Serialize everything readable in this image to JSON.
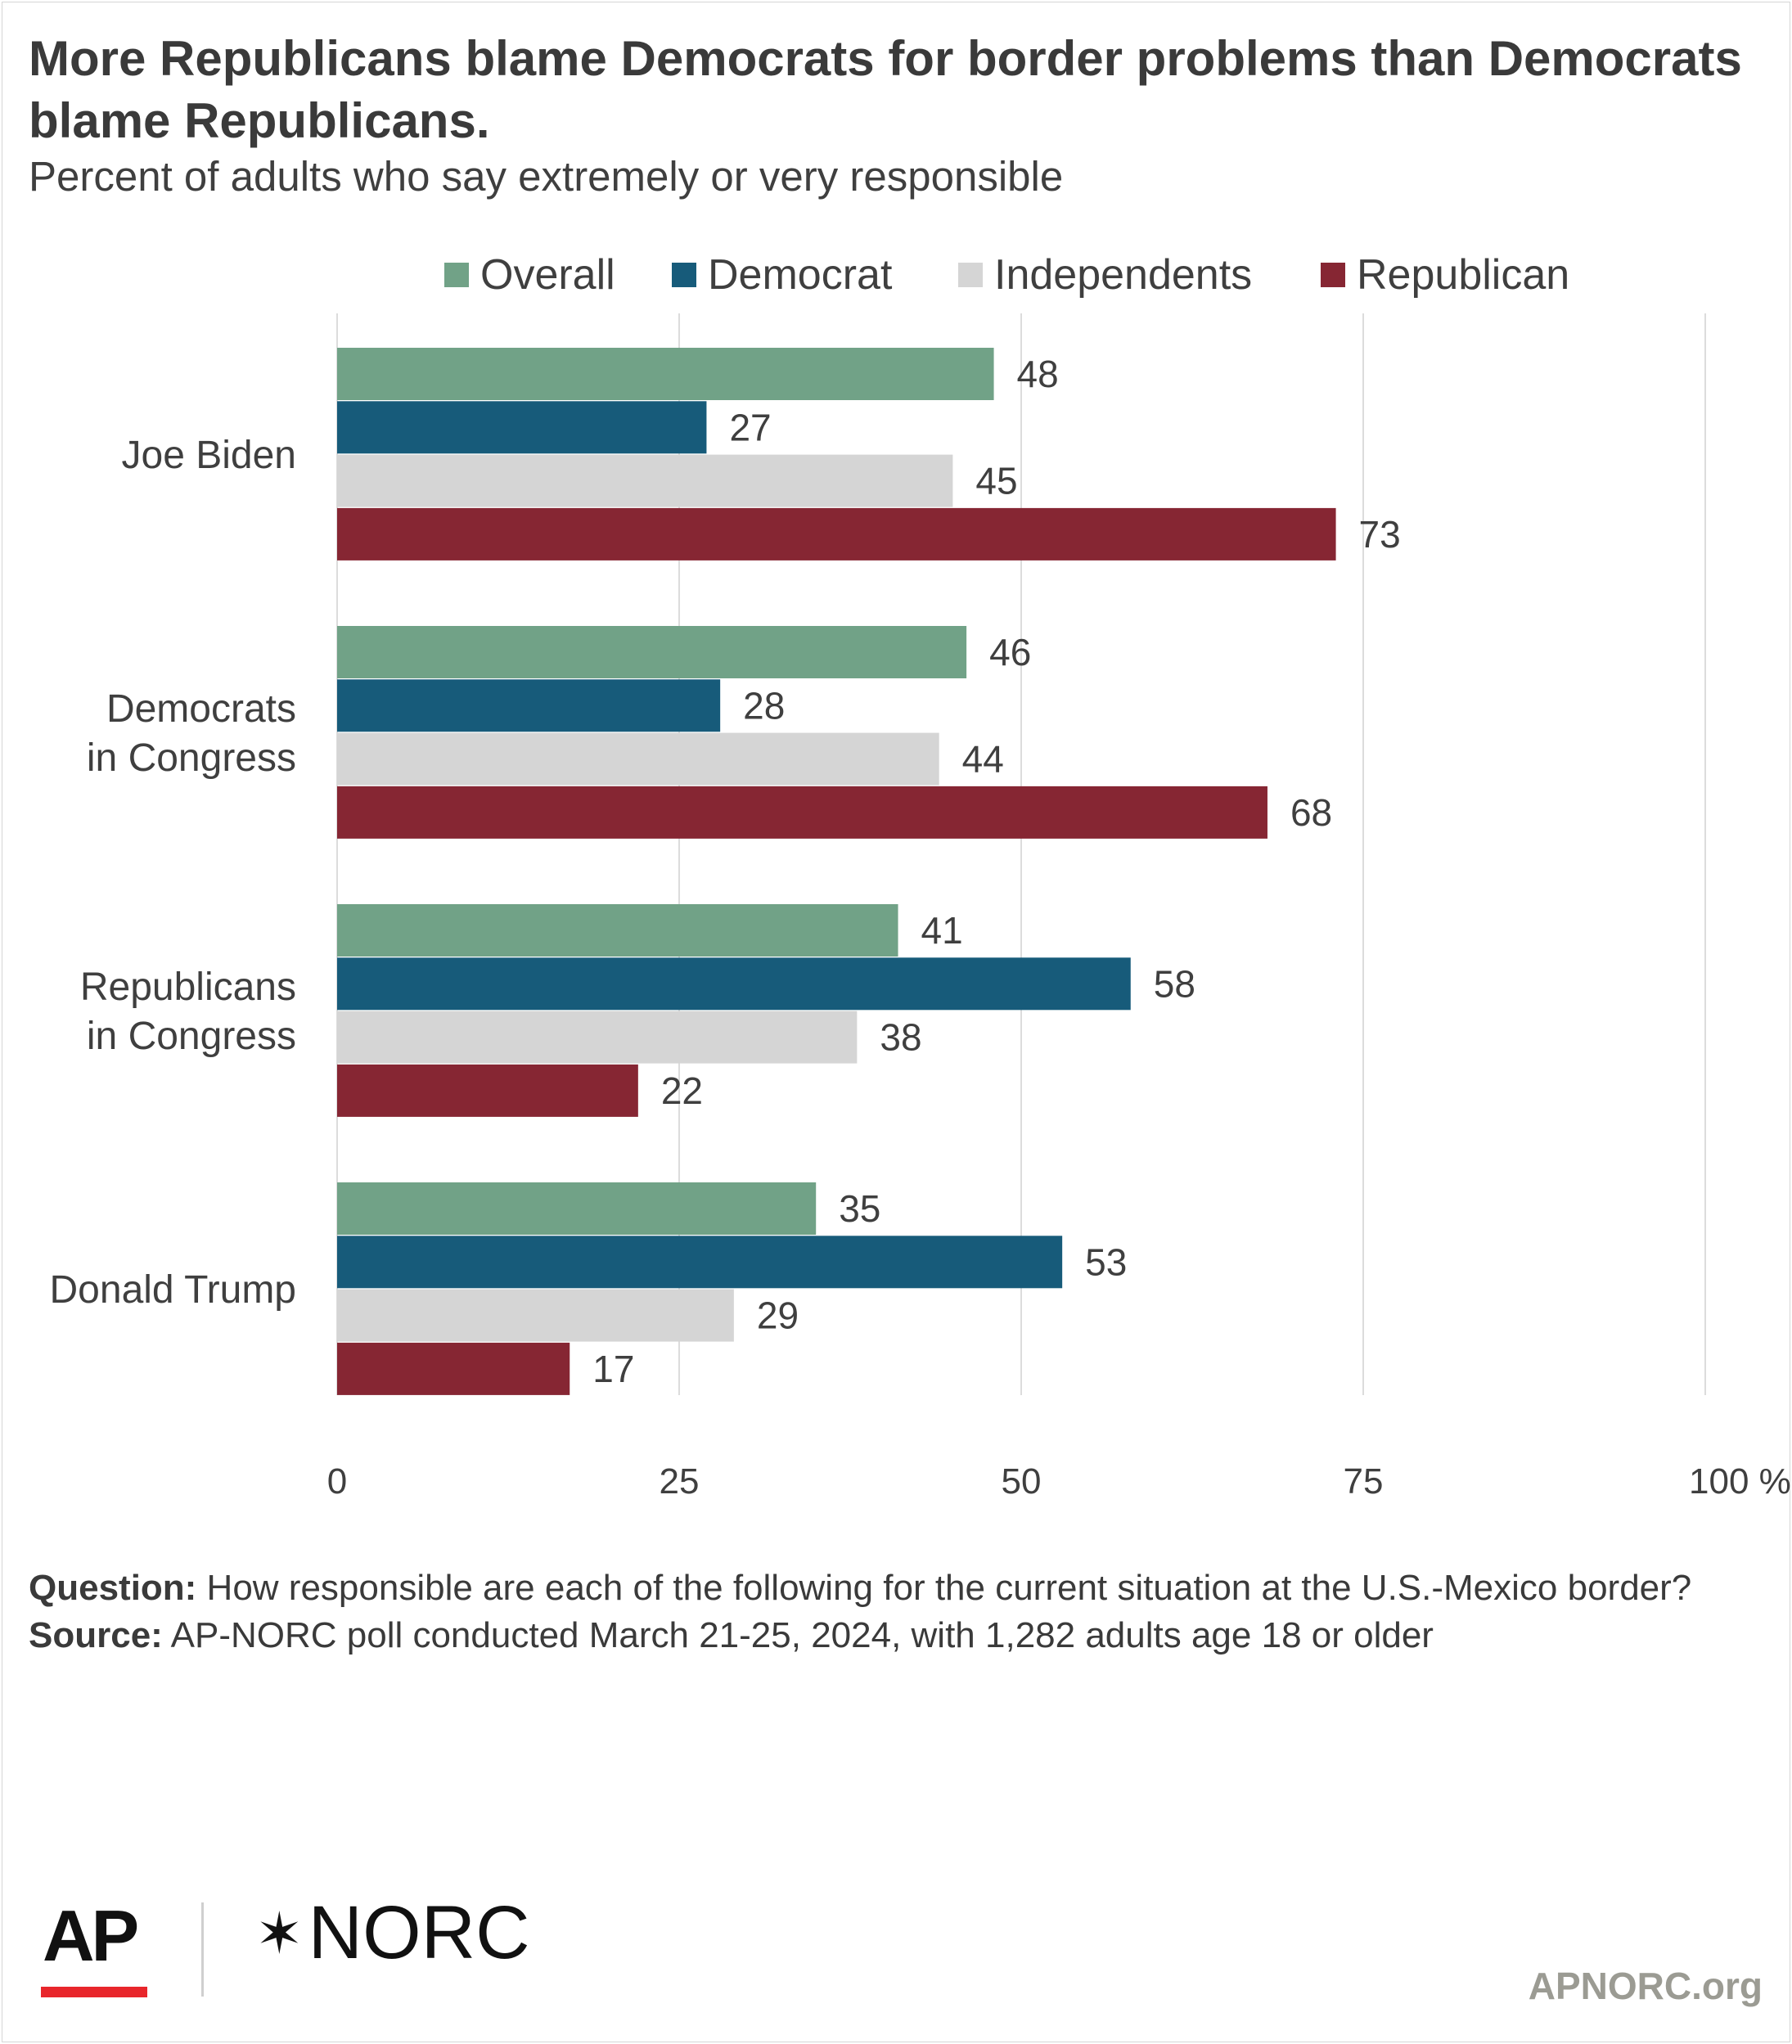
{
  "chart_data": {
    "type": "bar",
    "orientation": "horizontal",
    "title": "More Republicans blame Democrats for border problems than Democrats blame Republicans.",
    "subtitle": "Percent of adults who say extremely or very responsible",
    "categories": [
      "Joe Biden",
      "Democrats\nin Congress",
      "Republicans\nin Congress",
      "Donald Trump"
    ],
    "series": [
      {
        "name": "Overall",
        "color": "#71a287",
        "values": [
          48,
          46,
          41,
          35
        ]
      },
      {
        "name": "Democrat",
        "color": "#175b7a",
        "values": [
          27,
          28,
          58,
          53
        ]
      },
      {
        "name": "Independents",
        "color": "#d5d5d5",
        "values": [
          45,
          44,
          38,
          29
        ]
      },
      {
        "name": "Republican",
        "color": "#862633",
        "values": [
          73,
          68,
          22,
          17
        ]
      }
    ],
    "xlim": [
      0,
      100
    ],
    "xticks": [
      "0",
      "25",
      "50",
      "75",
      "100 %"
    ],
    "xtick_values": [
      0,
      25,
      50,
      75,
      100
    ],
    "grid": true,
    "legend_position": "top"
  },
  "footnote": {
    "question_label": "Question:",
    "question_text": " How responsible are each of the following for the current situation at the U.S.-Mexico border?",
    "source_label": "Source:",
    "source_text": " AP-NORC poll conducted March 21-25, 2024, with 1,282 adults age 18 or older"
  },
  "logos": {
    "ap": "AP",
    "norc": "NORC",
    "star_icon": "norc-star-icon"
  },
  "site": "APNORC.org"
}
